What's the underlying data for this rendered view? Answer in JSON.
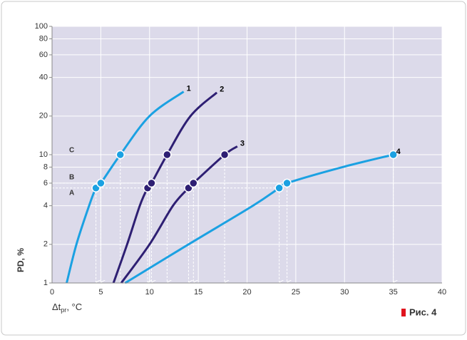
{
  "chart_data": {
    "type": "line",
    "y_label": "PD, %",
    "x_label": "Δt",
    "x_label_sub": "pr",
    "x_label_unit": ", °C",
    "figure_label": "Рис. 4",
    "xlim": [
      0,
      40
    ],
    "xticks": [
      0,
      5,
      10,
      15,
      20,
      25,
      30,
      35,
      40
    ],
    "ylim": [
      1,
      100
    ],
    "yticks": [
      1,
      2,
      4,
      6,
      8,
      10,
      20,
      40,
      60,
      80,
      100
    ],
    "log_y": true,
    "grid": true,
    "reference_lines": [
      {
        "label": "A",
        "value": 5.5
      },
      {
        "label": "B",
        "value": 6
      },
      {
        "label": "C",
        "value": 10
      }
    ],
    "series": [
      {
        "name": "1",
        "color": "#1ba1e2",
        "x": [
          1.5,
          2.5,
          3.8,
          4.5,
          5,
          7,
          10,
          13.5
        ],
        "values": [
          1,
          2,
          4,
          5.5,
          6,
          10,
          20,
          31
        ],
        "marker_x": [
          4.5,
          5,
          7
        ],
        "marker_values": [
          5.5,
          6,
          10
        ]
      },
      {
        "name": "2",
        "color": "#2e1f73",
        "x": [
          6.3,
          7.7,
          9,
          9.8,
          10.2,
          11.8,
          14.2,
          16.9
        ],
        "values": [
          1,
          2,
          4,
          5.5,
          6,
          10,
          20,
          30.5
        ],
        "marker_x": [
          9.8,
          10.2,
          11.8
        ],
        "marker_values": [
          5.5,
          6,
          10
        ]
      },
      {
        "name": "3",
        "color": "#2e1f73",
        "x": [
          7.1,
          10,
          12.4,
          14,
          14.5,
          17.7,
          19
        ],
        "values": [
          1,
          2,
          4,
          5.5,
          6,
          10,
          11.6
        ],
        "marker_x": [
          14,
          14.5,
          17.7
        ],
        "marker_values": [
          5.5,
          6,
          10
        ]
      },
      {
        "name": "4",
        "color": "#1ba1e2",
        "x": [
          7.5,
          14,
          20.6,
          23.3,
          24.1,
          29.8,
          35
        ],
        "values": [
          1,
          2,
          4,
          5.5,
          6,
          8,
          10
        ],
        "marker_x": [
          23.3,
          24.1,
          35
        ],
        "marker_values": [
          5.5,
          6,
          10
        ]
      }
    ]
  }
}
